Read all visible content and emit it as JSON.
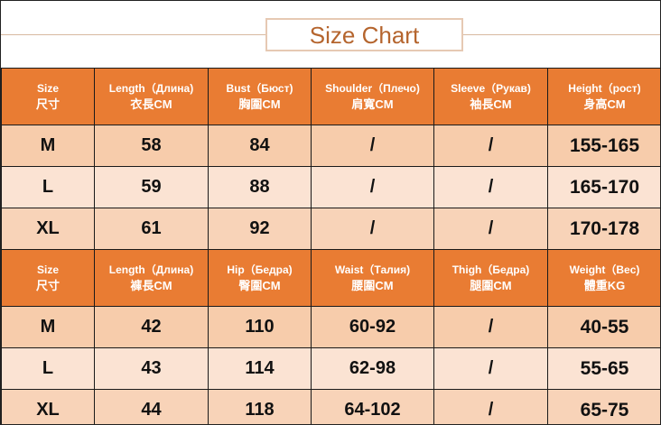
{
  "title": "Size Chart",
  "colors": {
    "header": "#e97c33",
    "row_dark": "#f7ccab",
    "row_light": "#fbe3d3",
    "title_text": "#b5652e"
  },
  "top_table": {
    "headers": [
      {
        "en": "Size",
        "zh": "尺寸"
      },
      {
        "en": "Length（Длина)",
        "zh": "衣長CM"
      },
      {
        "en": "Bust（Бюст)",
        "zh": "胸圍CM"
      },
      {
        "en": "Shoulder（Плечо)",
        "zh": "肩寬CM"
      },
      {
        "en": "Sleeve（Рукав)",
        "zh": "袖長CM"
      },
      {
        "en": "Height（рост)",
        "zh": "身高CM"
      }
    ],
    "rows": [
      [
        "M",
        "58",
        "84",
        "/",
        "/",
        "155-165"
      ],
      [
        "L",
        "59",
        "88",
        "/",
        "/",
        "165-170"
      ],
      [
        "XL",
        "61",
        "92",
        "/",
        "/",
        "170-178"
      ]
    ]
  },
  "bottom_table": {
    "headers": [
      {
        "en": "Size",
        "zh": "尺寸"
      },
      {
        "en": "Length（Длина)",
        "zh": "褲長CM"
      },
      {
        "en": "Hip（Бедра)",
        "zh": "臀圍CM"
      },
      {
        "en": "Waist（Талия)",
        "zh": "腰圍CM"
      },
      {
        "en": "Thigh（Бедра)",
        "zh": "腿圍CM"
      },
      {
        "en": "Weight（Bec)",
        "zh": "體重KG"
      }
    ],
    "rows": [
      [
        "M",
        "42",
        "110",
        "60-92",
        "/",
        "40-55"
      ],
      [
        "L",
        "43",
        "114",
        "62-98",
        "/",
        "55-65"
      ],
      [
        "XL",
        "44",
        "118",
        "64-102",
        "/",
        "65-75"
      ]
    ]
  }
}
